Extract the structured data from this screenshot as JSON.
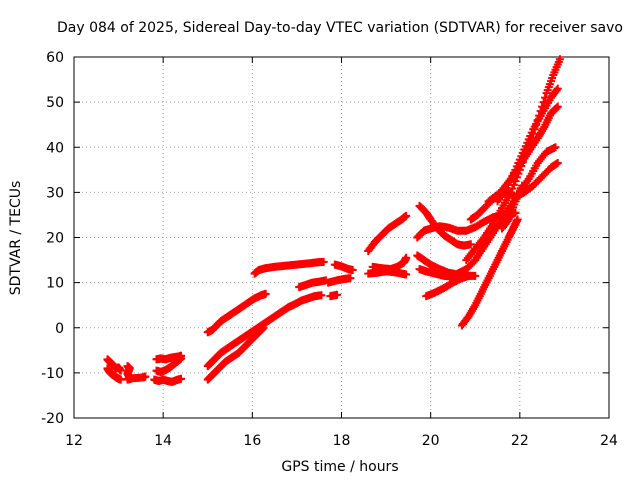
{
  "chart_data": {
    "type": "scatter",
    "title": "Day 084 of 2025, Sidereal Day-to-day VTEC variation (SDTVAR) for receiver savo",
    "xlabel": "GPS time / hours",
    "ylabel": "SDTVAR / TECUs",
    "xlim": [
      12,
      24
    ],
    "ylim": [
      -20,
      60
    ],
    "xticks": [
      "12",
      "14",
      "16",
      "18",
      "20",
      "22",
      "24"
    ],
    "yticks": [
      "-20",
      "-10",
      "0",
      "10",
      "20",
      "30",
      "40",
      "50",
      "60"
    ],
    "grid": true,
    "marker": "+",
    "color": "#ff0000",
    "series": [
      {
        "name": "s1",
        "points": [
          [
            12.75,
            -7
          ],
          [
            12.8,
            -7.5
          ],
          [
            12.85,
            -8
          ],
          [
            12.9,
            -8.5
          ],
          [
            12.95,
            -9
          ],
          [
            13.0,
            -8.8
          ],
          [
            13.05,
            -9.5
          ]
        ]
      },
      {
        "name": "s2",
        "points": [
          [
            12.75,
            -9
          ],
          [
            12.8,
            -9.8
          ],
          [
            12.85,
            -10.3
          ],
          [
            12.9,
            -10.6
          ],
          [
            12.95,
            -11
          ],
          [
            13.0,
            -11.3
          ],
          [
            13.05,
            -11.5
          ]
        ]
      },
      {
        "name": "s3",
        "points": [
          [
            13.2,
            -8.5
          ],
          [
            13.25,
            -9
          ],
          [
            13.2,
            -10.2
          ],
          [
            13.25,
            -11
          ],
          [
            13.2,
            -11.5
          ],
          [
            13.3,
            -11.2
          ],
          [
            13.55,
            -11
          ],
          [
            13.6,
            -10.8
          ]
        ]
      },
      {
        "name": "s4",
        "points": [
          [
            13.85,
            -7
          ],
          [
            13.95,
            -6.8
          ],
          [
            14.05,
            -7
          ],
          [
            14.15,
            -6.7
          ],
          [
            14.25,
            -6.5
          ],
          [
            14.35,
            -6.4
          ],
          [
            14.4,
            -6.2
          ]
        ]
      },
      {
        "name": "s5",
        "points": [
          [
            13.85,
            -9.5
          ],
          [
            13.95,
            -9.8
          ],
          [
            14.05,
            -9.4
          ],
          [
            14.15,
            -8.8
          ],
          [
            14.25,
            -8
          ],
          [
            14.35,
            -7.2
          ],
          [
            14.4,
            -6.8
          ]
        ]
      },
      {
        "name": "s6",
        "points": [
          [
            13.8,
            -11.5
          ],
          [
            13.9,
            -11.8
          ],
          [
            14.0,
            -11.5
          ],
          [
            14.1,
            -11.8
          ],
          [
            14.2,
            -12
          ],
          [
            14.3,
            -11.6
          ],
          [
            14.4,
            -11.3
          ]
        ]
      },
      {
        "name": "s7",
        "points": [
          [
            15.0,
            -1
          ],
          [
            15.1,
            -0.5
          ],
          [
            15.2,
            0.5
          ],
          [
            15.3,
            1.5
          ],
          [
            15.45,
            2.5
          ],
          [
            15.6,
            3.5
          ],
          [
            15.75,
            4.5
          ],
          [
            15.9,
            5.5
          ],
          [
            16.05,
            6.5
          ],
          [
            16.2,
            7.2
          ],
          [
            16.3,
            7.5
          ]
        ]
      },
      {
        "name": "s8",
        "points": [
          [
            15.0,
            -8.5
          ],
          [
            15.1,
            -7.5
          ],
          [
            15.2,
            -6.5
          ],
          [
            15.3,
            -5.5
          ],
          [
            15.45,
            -4.5
          ],
          [
            15.6,
            -3.5
          ],
          [
            15.75,
            -2.5
          ],
          [
            15.9,
            -1.5
          ],
          [
            16.05,
            -0.5
          ],
          [
            16.2,
            0.5
          ],
          [
            16.35,
            1.5
          ],
          [
            16.5,
            2.5
          ],
          [
            16.65,
            3.5
          ],
          [
            16.8,
            4.5
          ],
          [
            16.95,
            5.2
          ],
          [
            17.1,
            6
          ],
          [
            17.25,
            6.5
          ],
          [
            17.4,
            7
          ],
          [
            17.55,
            7.2
          ]
        ]
      },
      {
        "name": "s9",
        "points": [
          [
            15.0,
            -11.5
          ],
          [
            15.1,
            -10.5
          ],
          [
            15.2,
            -9.5
          ],
          [
            15.3,
            -8.5
          ],
          [
            15.4,
            -7.5
          ],
          [
            15.55,
            -6.5
          ],
          [
            15.7,
            -5.5
          ],
          [
            15.85,
            -4
          ],
          [
            16.0,
            -2.5
          ],
          [
            16.15,
            -1
          ],
          [
            16.25,
            0
          ]
        ]
      },
      {
        "name": "s10",
        "points": [
          [
            16.05,
            12
          ],
          [
            16.15,
            12.8
          ],
          [
            16.3,
            13.2
          ],
          [
            16.5,
            13.5
          ],
          [
            16.7,
            13.7
          ],
          [
            16.9,
            13.9
          ],
          [
            17.1,
            14.1
          ],
          [
            17.3,
            14.3
          ],
          [
            17.45,
            14.5
          ],
          [
            17.6,
            14.6
          ]
        ]
      },
      {
        "name": "s11",
        "points": [
          [
            17.05,
            9
          ],
          [
            17.2,
            9.5
          ],
          [
            17.35,
            10
          ],
          [
            17.5,
            10.2
          ],
          [
            17.65,
            10.5
          ]
        ]
      },
      {
        "name": "s12",
        "points": [
          [
            17.75,
            7
          ],
          [
            17.9,
            7.3
          ]
        ]
      },
      {
        "name": "s13",
        "points": [
          [
            17.7,
            10
          ],
          [
            17.9,
            10.5
          ],
          [
            18.05,
            10.8
          ],
          [
            18.2,
            11
          ]
        ]
      },
      {
        "name": "s14",
        "points": [
          [
            17.85,
            14
          ],
          [
            18.0,
            13.6
          ],
          [
            18.15,
            13
          ],
          [
            18.25,
            12.8
          ]
        ]
      },
      {
        "name": "s15",
        "points": [
          [
            18.6,
            17
          ],
          [
            18.75,
            19
          ],
          [
            18.9,
            20.5
          ],
          [
            19.05,
            22
          ],
          [
            19.2,
            23
          ],
          [
            19.35,
            24
          ],
          [
            19.45,
            24.8
          ]
        ]
      },
      {
        "name": "s16",
        "points": [
          [
            18.6,
            12
          ],
          [
            18.8,
            12.2
          ],
          [
            19.0,
            12.5
          ],
          [
            19.2,
            12.3
          ],
          [
            19.35,
            12
          ],
          [
            19.45,
            11.8
          ]
        ]
      },
      {
        "name": "s17",
        "points": [
          [
            18.7,
            13.5
          ],
          [
            18.9,
            13.2
          ],
          [
            19.1,
            13
          ],
          [
            19.25,
            13.5
          ],
          [
            19.4,
            14.5
          ],
          [
            19.45,
            15.5
          ]
        ]
      },
      {
        "name": "s18",
        "points": [
          [
            19.7,
            16
          ],
          [
            19.85,
            15
          ],
          [
            20.0,
            14
          ],
          [
            20.2,
            13
          ],
          [
            20.4,
            12.2
          ],
          [
            20.6,
            11.8
          ],
          [
            20.8,
            11.5
          ],
          [
            21.0,
            11.5
          ]
        ]
      },
      {
        "name": "s19",
        "points": [
          [
            19.75,
            13
          ],
          [
            19.9,
            12.5
          ],
          [
            20.1,
            12
          ],
          [
            20.3,
            11.5
          ],
          [
            20.5,
            11.3
          ],
          [
            20.7,
            11.5
          ],
          [
            20.8,
            12
          ]
        ]
      },
      {
        "name": "s20",
        "points": [
          [
            19.9,
            7
          ],
          [
            20.1,
            7.8
          ],
          [
            20.3,
            8.8
          ],
          [
            20.5,
            10
          ],
          [
            20.7,
            11
          ],
          [
            20.85,
            11.5
          ]
        ]
      },
      {
        "name": "s21",
        "points": [
          [
            19.7,
            20
          ],
          [
            19.85,
            21.5
          ],
          [
            20.0,
            22
          ],
          [
            20.2,
            22.5
          ],
          [
            20.4,
            22.2
          ],
          [
            20.6,
            21.5
          ],
          [
            20.8,
            21.5
          ],
          [
            21.0,
            22.3
          ],
          [
            21.2,
            23.5
          ],
          [
            21.4,
            24.5
          ],
          [
            21.6,
            25
          ],
          [
            21.8,
            25
          ],
          [
            21.9,
            25.5
          ]
        ]
      },
      {
        "name": "s22",
        "points": [
          [
            19.75,
            27
          ],
          [
            19.9,
            25.5
          ],
          [
            20.0,
            24
          ],
          [
            20.15,
            22
          ],
          [
            20.3,
            20.5
          ],
          [
            20.45,
            19.5
          ],
          [
            20.6,
            18.5
          ],
          [
            20.75,
            18.2
          ],
          [
            20.9,
            18.5
          ]
        ]
      },
      {
        "name": "s23",
        "points": [
          [
            20.7,
            0.5
          ],
          [
            20.85,
            2.5
          ],
          [
            21.0,
            5
          ],
          [
            21.15,
            8
          ],
          [
            21.3,
            11
          ],
          [
            21.45,
            14
          ],
          [
            21.6,
            17
          ],
          [
            21.75,
            20
          ],
          [
            21.85,
            22
          ],
          [
            21.95,
            24
          ]
        ]
      },
      {
        "name": "s24",
        "points": [
          [
            20.6,
            12
          ],
          [
            20.8,
            13
          ],
          [
            21.0,
            15
          ],
          [
            21.2,
            18
          ],
          [
            21.4,
            21
          ],
          [
            21.6,
            24
          ],
          [
            21.8,
            27
          ],
          [
            22.0,
            30
          ],
          [
            22.2,
            33
          ],
          [
            22.4,
            36.5
          ],
          [
            22.6,
            39
          ],
          [
            22.8,
            40
          ]
        ]
      },
      {
        "name": "s25",
        "points": [
          [
            20.9,
            24
          ],
          [
            21.05,
            25
          ],
          [
            21.2,
            26.5
          ],
          [
            21.4,
            28.5
          ],
          [
            21.6,
            30.5
          ],
          [
            21.8,
            33
          ],
          [
            22.0,
            36
          ],
          [
            22.2,
            39
          ],
          [
            22.4,
            42
          ],
          [
            22.55,
            44.5
          ],
          [
            22.7,
            47.5
          ],
          [
            22.85,
            49
          ]
        ]
      },
      {
        "name": "s26",
        "points": [
          [
            20.8,
            15
          ],
          [
            21.0,
            17.5
          ],
          [
            21.2,
            20
          ],
          [
            21.4,
            23
          ],
          [
            21.6,
            26.5
          ],
          [
            21.8,
            30
          ],
          [
            22.0,
            35
          ],
          [
            22.2,
            40
          ],
          [
            22.4,
            46
          ],
          [
            22.6,
            52
          ],
          [
            22.75,
            56
          ],
          [
            22.9,
            59.5
          ]
        ]
      },
      {
        "name": "s27",
        "points": [
          [
            21.3,
            28
          ],
          [
            21.5,
            29.5
          ],
          [
            21.7,
            30
          ],
          [
            21.9,
            29
          ],
          [
            22.1,
            30
          ],
          [
            22.3,
            31.5
          ],
          [
            22.5,
            33.5
          ],
          [
            22.7,
            35.5
          ],
          [
            22.85,
            36.5
          ]
        ]
      },
      {
        "name": "s28",
        "points": [
          [
            21.5,
            28
          ],
          [
            21.7,
            31
          ],
          [
            21.9,
            35
          ],
          [
            22.1,
            39.5
          ],
          [
            22.3,
            44
          ],
          [
            22.5,
            47.5
          ],
          [
            22.7,
            51
          ],
          [
            22.85,
            53
          ]
        ]
      },
      {
        "name": "s29",
        "points": [
          [
            21.6,
            22
          ],
          [
            21.75,
            24
          ],
          [
            21.9,
            28
          ],
          [
            22.05,
            31.5
          ]
        ]
      }
    ]
  }
}
